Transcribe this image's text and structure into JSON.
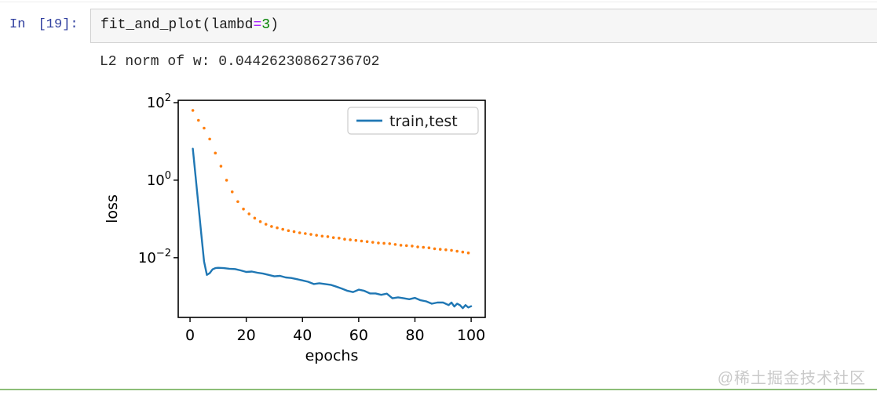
{
  "notebook": {
    "input_prompt": "In [19]:",
    "code": {
      "function_name": "fit_and_plot",
      "open_paren": "(",
      "arg_name": "lambd",
      "operator": "=",
      "number": "3",
      "close_paren": ")"
    },
    "output_text": "L2 norm of w: 0.04426230862736702"
  },
  "watermark": "@稀土掘金技术社区",
  "colors": {
    "prompt_blue": "#303f9f",
    "operator_purple": "#aa22ff",
    "number_green": "#008000",
    "train_blue": "#1f77b4",
    "test_orange": "#ff7f0e",
    "divider_green": "#8cbe78",
    "watermark_gray": "#c9c9c9"
  },
  "chart_data": {
    "type": "line",
    "title": "",
    "xlabel": "epochs",
    "ylabel": "loss",
    "yscale": "log",
    "grid": false,
    "xlim": [
      -4.2,
      105
    ],
    "ylim_log": [
      -3.54,
      2.06
    ],
    "x_ticks": [
      0,
      20,
      40,
      60,
      80,
      100
    ],
    "y_ticks": [
      {
        "label_base": "10",
        "label_exp": "2",
        "value": 100
      },
      {
        "label_base": "10",
        "label_exp": "0",
        "value": 1
      },
      {
        "label_base": "10",
        "label_exp": "−2",
        "value": 0.01
      }
    ],
    "legend": {
      "position": "upper right",
      "entries": [
        {
          "label": "train,test",
          "color": "#1f77b4",
          "style": "solid"
        }
      ]
    },
    "series": [
      {
        "name": "train",
        "color": "#1f77b4",
        "style": "solid",
        "points": [
          [
            1,
            6.5
          ],
          [
            2,
            1.2
          ],
          [
            3,
            0.22
          ],
          [
            4,
            0.04
          ],
          [
            5,
            0.008
          ],
          [
            6,
            0.0036
          ],
          [
            7,
            0.004
          ],
          [
            8,
            0.005
          ],
          [
            9,
            0.0054
          ],
          [
            10,
            0.0055
          ],
          [
            12,
            0.0054
          ],
          [
            14,
            0.0052
          ],
          [
            16,
            0.0051
          ],
          [
            18,
            0.0047
          ],
          [
            20,
            0.0043
          ],
          [
            22,
            0.0044
          ],
          [
            24,
            0.0041
          ],
          [
            26,
            0.0039
          ],
          [
            28,
            0.0036
          ],
          [
            30,
            0.0033
          ],
          [
            32,
            0.0034
          ],
          [
            34,
            0.0031
          ],
          [
            36,
            0.003
          ],
          [
            38,
            0.0028
          ],
          [
            40,
            0.0026
          ],
          [
            42,
            0.0024
          ],
          [
            44,
            0.0021
          ],
          [
            46,
            0.0022
          ],
          [
            48,
            0.0021
          ],
          [
            50,
            0.002
          ],
          [
            52,
            0.0018
          ],
          [
            54,
            0.0016
          ],
          [
            56,
            0.0014
          ],
          [
            58,
            0.0013
          ],
          [
            60,
            0.0015
          ],
          [
            62,
            0.0014
          ],
          [
            64,
            0.0012
          ],
          [
            66,
            0.0012
          ],
          [
            68,
            0.0011
          ],
          [
            70,
            0.00118
          ],
          [
            72,
            0.0009
          ],
          [
            74,
            0.00095
          ],
          [
            76,
            0.0009
          ],
          [
            78,
            0.00085
          ],
          [
            80,
            0.00092
          ],
          [
            82,
            0.0008
          ],
          [
            84,
            0.00075
          ],
          [
            86,
            0.00065
          ],
          [
            88,
            0.0007
          ],
          [
            90,
            0.0007
          ],
          [
            92,
            0.0006
          ],
          [
            93,
            0.0007
          ],
          [
            94,
            0.00055
          ],
          [
            95,
            0.00065
          ],
          [
            96,
            0.0006
          ],
          [
            97,
            0.0005
          ],
          [
            98,
            0.0006
          ],
          [
            99,
            0.00052
          ],
          [
            100,
            0.00056
          ]
        ]
      },
      {
        "name": "test",
        "color": "#ff7f0e",
        "style": "dotted",
        "points": [
          [
            1,
            63
          ],
          [
            3,
            35
          ],
          [
            5,
            22
          ],
          [
            7,
            11.5
          ],
          [
            9,
            5.0
          ],
          [
            11,
            2.3
          ],
          [
            13,
            1.0
          ],
          [
            15,
            0.5
          ],
          [
            17,
            0.28
          ],
          [
            19,
            0.18
          ],
          [
            21,
            0.135
          ],
          [
            23,
            0.105
          ],
          [
            25,
            0.085
          ],
          [
            27,
            0.073
          ],
          [
            29,
            0.064
          ],
          [
            31,
            0.059
          ],
          [
            33,
            0.054
          ],
          [
            35,
            0.05
          ],
          [
            37,
            0.047
          ],
          [
            39,
            0.044
          ],
          [
            41,
            0.042
          ],
          [
            43,
            0.04
          ],
          [
            45,
            0.038
          ],
          [
            47,
            0.036
          ],
          [
            49,
            0.035
          ],
          [
            51,
            0.033
          ],
          [
            53,
            0.032
          ],
          [
            55,
            0.03
          ],
          [
            57,
            0.029
          ],
          [
            59,
            0.028
          ],
          [
            61,
            0.027
          ],
          [
            63,
            0.026
          ],
          [
            65,
            0.025
          ],
          [
            67,
            0.024
          ],
          [
            69,
            0.0235
          ],
          [
            71,
            0.023
          ],
          [
            73,
            0.022
          ],
          [
            75,
            0.021
          ],
          [
            77,
            0.0205
          ],
          [
            79,
            0.02
          ],
          [
            81,
            0.019
          ],
          [
            83,
            0.0185
          ],
          [
            85,
            0.018
          ],
          [
            87,
            0.017
          ],
          [
            89,
            0.0165
          ],
          [
            91,
            0.016
          ],
          [
            93,
            0.0155
          ],
          [
            95,
            0.0147
          ],
          [
            97,
            0.014
          ],
          [
            99,
            0.0133
          ]
        ]
      }
    ]
  }
}
